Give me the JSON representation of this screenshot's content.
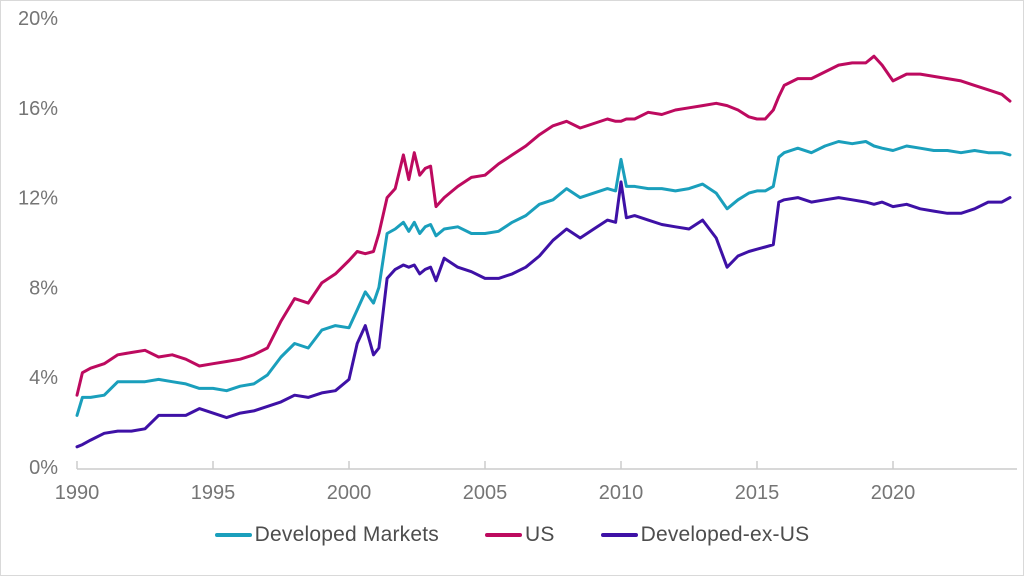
{
  "page": {
    "background": "#ffffff",
    "border_color": "#d9d9d9"
  },
  "colors": {
    "axis_line": "#cccccc",
    "axis_text": "#757575",
    "legend_text": "#4d4d4d"
  },
  "chart_data": {
    "type": "line",
    "title": "",
    "xlabel": "",
    "ylabel": "",
    "grid": "off",
    "legend_position": "bottom",
    "ylim": [
      0,
      20
    ],
    "xlim": [
      1990,
      2024.8
    ],
    "y_ticks": [
      {
        "value": 0,
        "label": "0%"
      },
      {
        "value": 4,
        "label": "4%"
      },
      {
        "value": 8,
        "label": "8%"
      },
      {
        "value": 12,
        "label": "12%"
      },
      {
        "value": 16,
        "label": "16%"
      },
      {
        "value": 20,
        "label": "20%"
      }
    ],
    "x_ticks": [
      {
        "value": 1990,
        "label": "1990"
      },
      {
        "value": 1995,
        "label": "1995"
      },
      {
        "value": 2000,
        "label": "2000"
      },
      {
        "value": 2005,
        "label": "2005"
      },
      {
        "value": 2010,
        "label": "2010"
      },
      {
        "value": 2015,
        "label": "2015"
      },
      {
        "value": 2020,
        "label": "2020"
      }
    ],
    "x": [
      1990.0,
      1990.2,
      1990.5,
      1991.0,
      1991.5,
      1992.0,
      1992.5,
      1993.0,
      1993.5,
      1994.0,
      1994.5,
      1995.0,
      1995.5,
      1996.0,
      1996.5,
      1997.0,
      1997.5,
      1998.0,
      1998.5,
      1999.0,
      1999.5,
      2000.0,
      2000.3,
      2000.6,
      2000.9,
      2001.1,
      2001.4,
      2001.7,
      2002.0,
      2002.2,
      2002.4,
      2002.6,
      2002.8,
      2003.0,
      2003.2,
      2003.5,
      2004.0,
      2004.5,
      2005.0,
      2005.5,
      2006.0,
      2006.5,
      2007.0,
      2007.5,
      2008.0,
      2008.5,
      2009.0,
      2009.5,
      2009.8,
      2010.0,
      2010.2,
      2010.5,
      2011.0,
      2011.5,
      2012.0,
      2012.5,
      2013.0,
      2013.5,
      2013.9,
      2014.3,
      2014.7,
      2015.0,
      2015.3,
      2015.6,
      2015.8,
      2016.0,
      2016.5,
      2017.0,
      2017.5,
      2018.0,
      2018.5,
      2019.0,
      2019.3,
      2019.6,
      2020.0,
      2020.5,
      2021.0,
      2021.5,
      2022.0,
      2022.5,
      2023.0,
      2023.5,
      2024.0,
      2024.3
    ],
    "series": [
      {
        "name": "Developed Markets",
        "color": "#1A9FBC",
        "values": [
          2.3,
          3.1,
          3.1,
          3.2,
          3.8,
          3.8,
          3.8,
          3.9,
          3.8,
          3.7,
          3.5,
          3.5,
          3.4,
          3.6,
          3.7,
          4.1,
          4.9,
          5.5,
          5.3,
          6.1,
          6.3,
          6.2,
          7.0,
          7.8,
          7.3,
          8.0,
          10.4,
          10.6,
          10.9,
          10.5,
          10.9,
          10.4,
          10.7,
          10.8,
          10.3,
          10.6,
          10.7,
          10.4,
          10.4,
          10.5,
          10.9,
          11.2,
          11.7,
          11.9,
          12.4,
          12.0,
          12.2,
          12.4,
          12.3,
          13.7,
          12.5,
          12.5,
          12.4,
          12.4,
          12.3,
          12.4,
          12.6,
          12.2,
          11.5,
          11.9,
          12.2,
          12.3,
          12.3,
          12.5,
          13.8,
          14.0,
          14.2,
          14.0,
          14.3,
          14.5,
          14.4,
          14.5,
          14.3,
          14.2,
          14.1,
          14.3,
          14.2,
          14.1,
          14.1,
          14.0,
          14.1,
          14.0,
          14.0,
          13.9
        ]
      },
      {
        "name": "US",
        "color": "#BD0A5F",
        "values": [
          3.2,
          4.2,
          4.4,
          4.6,
          5.0,
          5.1,
          5.2,
          4.9,
          5.0,
          4.8,
          4.5,
          4.6,
          4.7,
          4.8,
          5.0,
          5.3,
          6.5,
          7.5,
          7.3,
          8.2,
          8.6,
          9.2,
          9.6,
          9.5,
          9.6,
          10.4,
          12.0,
          12.4,
          13.9,
          12.8,
          14.0,
          13.0,
          13.3,
          13.4,
          11.6,
          12.0,
          12.5,
          12.9,
          13.0,
          13.5,
          13.9,
          14.3,
          14.8,
          15.2,
          15.4,
          15.1,
          15.3,
          15.5,
          15.4,
          15.4,
          15.5,
          15.5,
          15.8,
          15.7,
          15.9,
          16.0,
          16.1,
          16.2,
          16.1,
          15.9,
          15.6,
          15.5,
          15.5,
          15.9,
          16.5,
          17.0,
          17.3,
          17.3,
          17.6,
          17.9,
          18.0,
          18.0,
          18.3,
          17.9,
          17.2,
          17.5,
          17.5,
          17.4,
          17.3,
          17.2,
          17.0,
          16.8,
          16.6,
          16.3
        ]
      },
      {
        "name": "Developed-ex-US",
        "color": "#3E11A6",
        "values": [
          0.9,
          1.0,
          1.2,
          1.5,
          1.6,
          1.6,
          1.7,
          2.3,
          2.3,
          2.3,
          2.6,
          2.4,
          2.2,
          2.4,
          2.5,
          2.7,
          2.9,
          3.2,
          3.1,
          3.3,
          3.4,
          3.9,
          5.5,
          6.3,
          5.0,
          5.3,
          8.4,
          8.8,
          9.0,
          8.9,
          9.0,
          8.6,
          8.8,
          8.9,
          8.3,
          9.3,
          8.9,
          8.7,
          8.4,
          8.4,
          8.6,
          8.9,
          9.4,
          10.1,
          10.6,
          10.2,
          10.6,
          11.0,
          10.9,
          12.7,
          11.1,
          11.2,
          11.0,
          10.8,
          10.7,
          10.6,
          11.0,
          10.2,
          8.9,
          9.4,
          9.6,
          9.7,
          9.8,
          9.9,
          11.8,
          11.9,
          12.0,
          11.8,
          11.9,
          12.0,
          11.9,
          11.8,
          11.7,
          11.8,
          11.6,
          11.7,
          11.5,
          11.4,
          11.3,
          11.3,
          11.5,
          11.8,
          11.8,
          12.0
        ]
      }
    ]
  }
}
